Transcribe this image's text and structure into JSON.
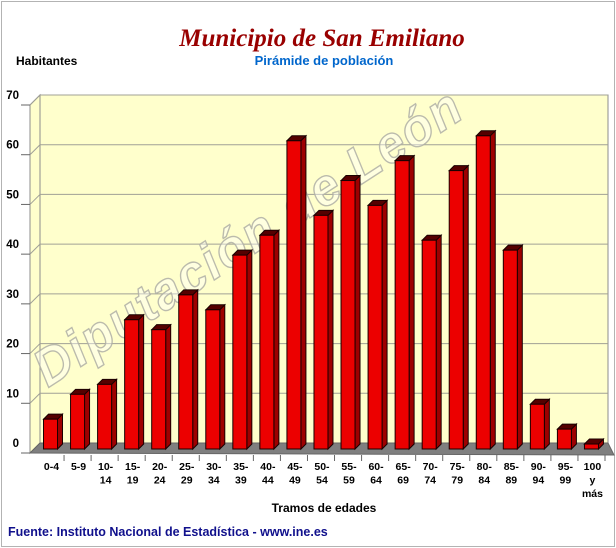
{
  "header": {
    "title": "Municipio de San Emiliano",
    "subtitle": "Pirámide de población"
  },
  "y_axis_title": "Habitantes",
  "x_axis_title": "Tramos de edades",
  "source_line": "Fuente: Instituto Nacional de Estadística - www.ine.es",
  "watermark": "Diputación de León",
  "chart_data": {
    "type": "bar",
    "style": "3d-column",
    "title": "Pirámide de población",
    "xlabel": "Tramos de edades",
    "ylabel": "Habitantes",
    "categories": [
      "0-4",
      "5-9",
      "10-14",
      "15-19",
      "20-24",
      "25-29",
      "30-34",
      "35-39",
      "40-44",
      "45-49",
      "50-54",
      "55-59",
      "60-64",
      "65-69",
      "70-74",
      "75-79",
      "80-84",
      "85-89",
      "90-94",
      "95-99",
      "100 y más"
    ],
    "values": [
      6,
      11,
      13,
      26,
      24,
      31,
      28,
      39,
      43,
      62,
      47,
      54,
      49,
      58,
      42,
      56,
      63,
      40,
      9,
      4,
      1
    ],
    "ylim": [
      0,
      70
    ],
    "ytick_step": 10,
    "grid": true,
    "legend": "none"
  },
  "colors": {
    "title": "#990000",
    "subtitle": "#0066CC",
    "source": "#10108C",
    "bar_front": "#EC0000",
    "bar_side": "#9E0000",
    "bar_top": "#550000",
    "bar_outline": "#1A0000",
    "plot_bg": "#FFFFCC",
    "floor": "#7F7F7F",
    "floor_edge": "#666666",
    "grid": "#A0A096",
    "wall_edge": "#8C8C8C",
    "tick": "#666666",
    "axis_text": "#000000",
    "watermark_fill": "rgba(255,255,255,0.40)",
    "watermark_stroke": "rgba(175,175,165,0.85)"
  }
}
